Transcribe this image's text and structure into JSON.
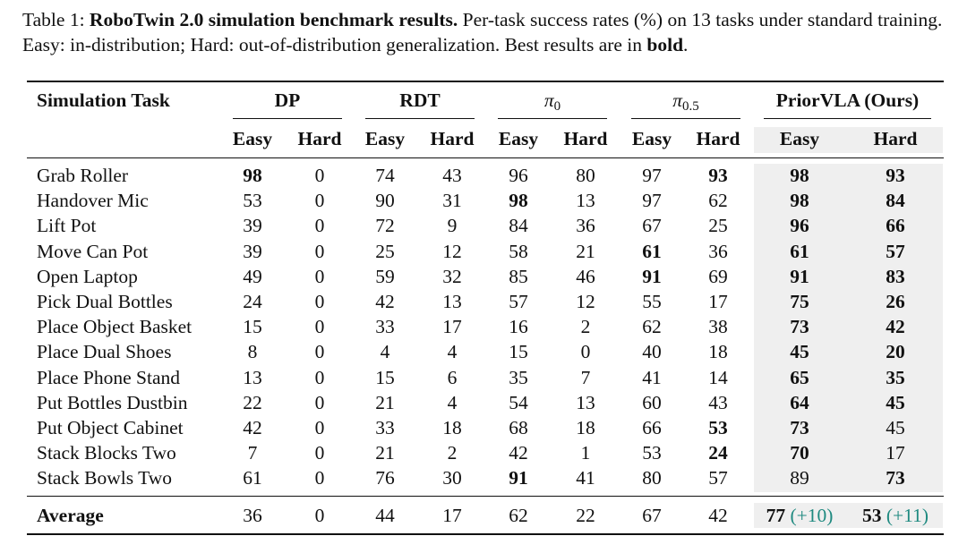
{
  "caption": {
    "label": "Table 1:",
    "title": "RoboTwin 2.0 simulation benchmark results.",
    "text1": " Per-task success rates (%) on 13 tasks under standard training. Easy: in-distribution; Hard: out-of-distribution generalization. Best results are in ",
    "bold_word": "bold",
    "end": "."
  },
  "table": {
    "task_header": "Simulation Task",
    "methods": [
      {
        "name": "DP"
      },
      {
        "name": "RDT"
      },
      {
        "name": "π",
        "sub": "0"
      },
      {
        "name": "π",
        "sub": "0.5"
      },
      {
        "name": "PriorVLA (Ours)"
      }
    ],
    "split_labels": [
      "Easy",
      "Hard"
    ],
    "rows": [
      {
        "task": "Grab Roller",
        "values": [
          "98",
          "0",
          "74",
          "43",
          "96",
          "80",
          "97",
          "93",
          "98",
          "93"
        ],
        "bold": [
          0,
          7,
          8,
          9
        ]
      },
      {
        "task": "Handover Mic",
        "values": [
          "53",
          "0",
          "90",
          "31",
          "98",
          "13",
          "97",
          "62",
          "98",
          "84"
        ],
        "bold": [
          4,
          8,
          9
        ]
      },
      {
        "task": "Lift Pot",
        "values": [
          "39",
          "0",
          "72",
          "9",
          "84",
          "36",
          "67",
          "25",
          "96",
          "66"
        ],
        "bold": [
          8,
          9
        ]
      },
      {
        "task": "Move Can Pot",
        "values": [
          "39",
          "0",
          "25",
          "12",
          "58",
          "21",
          "61",
          "36",
          "61",
          "57"
        ],
        "bold": [
          6,
          8,
          9
        ]
      },
      {
        "task": "Open Laptop",
        "values": [
          "49",
          "0",
          "59",
          "32",
          "85",
          "46",
          "91",
          "69",
          "91",
          "83"
        ],
        "bold": [
          6,
          8,
          9
        ]
      },
      {
        "task": "Pick Dual Bottles",
        "values": [
          "24",
          "0",
          "42",
          "13",
          "57",
          "12",
          "55",
          "17",
          "75",
          "26"
        ],
        "bold": [
          8,
          9
        ]
      },
      {
        "task": "Place Object Basket",
        "values": [
          "15",
          "0",
          "33",
          "17",
          "16",
          "2",
          "62",
          "38",
          "73",
          "42"
        ],
        "bold": [
          8,
          9
        ]
      },
      {
        "task": "Place Dual Shoes",
        "values": [
          "8",
          "0",
          "4",
          "4",
          "15",
          "0",
          "40",
          "18",
          "45",
          "20"
        ],
        "bold": [
          8,
          9
        ]
      },
      {
        "task": "Place Phone Stand",
        "values": [
          "13",
          "0",
          "15",
          "6",
          "35",
          "7",
          "41",
          "14",
          "65",
          "35"
        ],
        "bold": [
          8,
          9
        ]
      },
      {
        "task": "Put Bottles Dustbin",
        "values": [
          "22",
          "0",
          "21",
          "4",
          "54",
          "13",
          "60",
          "43",
          "64",
          "45"
        ],
        "bold": [
          8,
          9
        ]
      },
      {
        "task": "Put Object Cabinet",
        "values": [
          "42",
          "0",
          "33",
          "18",
          "68",
          "18",
          "66",
          "53",
          "73",
          "45"
        ],
        "bold": [
          7,
          8
        ]
      },
      {
        "task": "Stack Blocks Two",
        "values": [
          "7",
          "0",
          "21",
          "2",
          "42",
          "1",
          "53",
          "24",
          "70",
          "17"
        ],
        "bold": [
          7,
          8
        ]
      },
      {
        "task": "Stack Bowls Two",
        "values": [
          "61",
          "0",
          "76",
          "30",
          "91",
          "41",
          "80",
          "57",
          "89",
          "73"
        ],
        "bold": [
          4,
          9
        ]
      }
    ],
    "average": {
      "label": "Average",
      "values": [
        "36",
        "0",
        "44",
        "17",
        "62",
        "22",
        "67",
        "42",
        "77",
        "53"
      ],
      "gains": {
        "8": "(+10)",
        "9": "(+11)"
      },
      "bold": [
        8,
        9
      ]
    }
  }
}
